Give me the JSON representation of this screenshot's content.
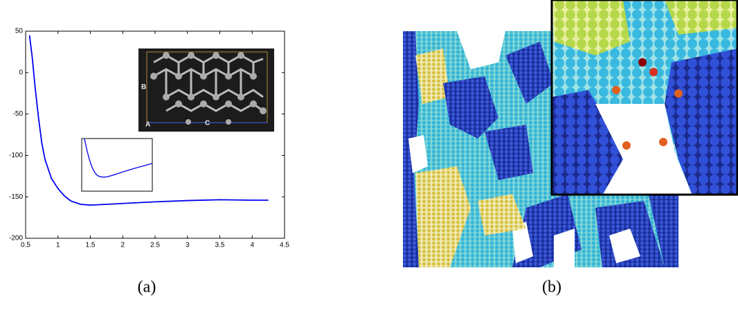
{
  "chart_data": {
    "type": "line",
    "x": [
      0.56,
      0.6,
      0.65,
      0.7,
      0.75,
      0.8,
      0.9,
      1.0,
      1.1,
      1.2,
      1.35,
      1.5,
      1.75,
      2.0,
      2.5,
      3.0,
      3.5,
      4.0,
      4.25
    ],
    "values": [
      45,
      20,
      -20,
      -55,
      -85,
      -105,
      -128,
      -140,
      -149,
      -155,
      -159,
      -160,
      -159,
      -158,
      -156,
      -154.5,
      -153.5,
      -154,
      -154
    ],
    "color": "#0000ee",
    "xlim": [
      0.5,
      4.5
    ],
    "xticks": [
      0.5,
      1,
      1.5,
      2,
      2.5,
      3,
      3.5,
      4,
      4.5
    ],
    "ylim": [
      -200,
      50
    ],
    "yticks": [
      -200,
      -150,
      -100,
      -50,
      0,
      50
    ]
  },
  "inset_labels": [
    "A",
    "B",
    "C"
  ],
  "captions": [
    "(a)",
    "(b)"
  ]
}
